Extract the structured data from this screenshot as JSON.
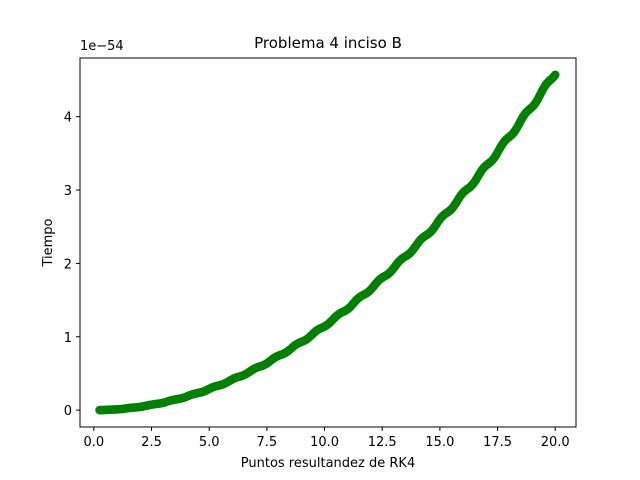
{
  "chart_data": {
    "type": "scatter",
    "title": "Problema 4 inciso B",
    "xlabel": "Puntos resultandez de RK4",
    "ylabel": "Tiempo",
    "y_offset_label": "1e−54",
    "xlim": [
      -0.6,
      20.9
    ],
    "ylim": [
      -2.3e-55,
      4.8e-54
    ],
    "xticks": [
      0.0,
      2.5,
      5.0,
      7.5,
      10.0,
      12.5,
      15.0,
      17.5,
      20.0
    ],
    "xtick_labels": [
      "0.0",
      "2.5",
      "5.0",
      "7.5",
      "10.0",
      "12.5",
      "15.0",
      "17.5",
      "20.0"
    ],
    "yticks": [
      0,
      1e-54,
      2e-54,
      3e-54,
      4e-54
    ],
    "ytick_labels": [
      "0",
      "1",
      "2",
      "3",
      "4"
    ],
    "grid": false,
    "marker_color": "#008000",
    "series": [
      {
        "x_start": 0.25,
        "x_end": 20.0,
        "x_step": 0.05,
        "y_formula": "1.149e-56 * x^2 (staircase ripple)",
        "points": [
          [
            0.25,
            0.0
          ],
          [
            1.0,
            1e-56
          ],
          [
            2.0,
            5e-56
          ],
          [
            2.5,
            7e-56
          ],
          [
            3.0,
            1e-55
          ],
          [
            4.0,
            1.8e-55
          ],
          [
            5.0,
            2.9e-55
          ],
          [
            6.0,
            4.1e-55
          ],
          [
            7.0,
            5.6e-55
          ],
          [
            7.5,
            6.5e-55
          ],
          [
            8.0,
            7.4e-55
          ],
          [
            9.0,
            9.3e-55
          ],
          [
            10.0,
            1.15e-54
          ],
          [
            11.0,
            1.39e-54
          ],
          [
            12.0,
            1.65e-54
          ],
          [
            12.5,
            1.8e-54
          ],
          [
            13.0,
            1.94e-54
          ],
          [
            14.0,
            2.25e-54
          ],
          [
            15.0,
            2.59e-54
          ],
          [
            16.0,
            2.94e-54
          ],
          [
            17.0,
            3.32e-54
          ],
          [
            17.5,
            3.52e-54
          ],
          [
            18.0,
            3.72e-54
          ],
          [
            19.0,
            4.15e-54
          ],
          [
            20.0,
            4.59e-54
          ]
        ]
      }
    ]
  }
}
